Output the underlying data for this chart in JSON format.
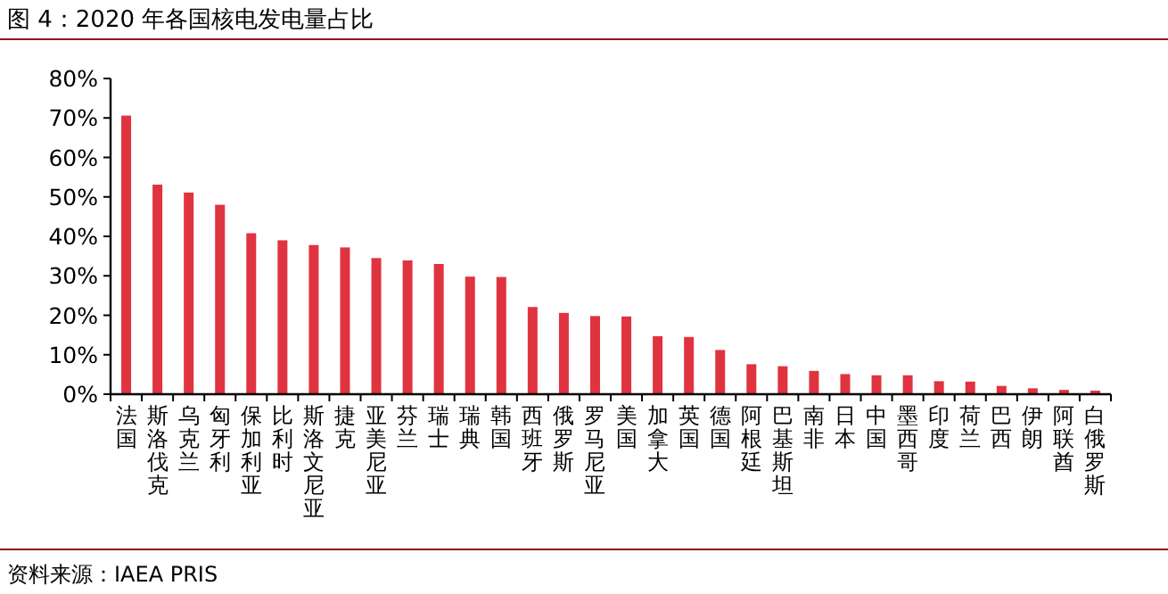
{
  "chart_data": {
    "type": "bar",
    "title": "图 4：2020 年各国核电发电量占比",
    "categories": [
      "法国",
      "斯洛伐克",
      "乌克兰",
      "匈牙利",
      "保加利亚",
      "比利时",
      "斯洛文尼亚",
      "捷克",
      "亚美尼亚",
      "芬兰",
      "瑞士",
      "瑞典",
      "韩国",
      "西班牙",
      "俄罗斯",
      "罗马尼亚",
      "美国",
      "加拿大",
      "英国",
      "德国",
      "阿根廷",
      "巴基斯坦",
      "南非",
      "日本",
      "中国",
      "墨西哥",
      "印度",
      "荷兰",
      "巴西",
      "伊朗",
      "阿联酋",
      "白俄罗斯"
    ],
    "values": [
      70.6,
      53.1,
      51.1,
      48.0,
      40.8,
      39.0,
      37.8,
      37.2,
      34.5,
      33.9,
      33.0,
      29.8,
      29.7,
      22.1,
      20.6,
      19.8,
      19.7,
      14.7,
      14.5,
      11.2,
      7.6,
      7.1,
      5.9,
      5.1,
      4.8,
      4.8,
      3.3,
      3.2,
      2.1,
      1.5,
      1.1,
      0.9
    ],
    "color": "#e03340",
    "ylim": [
      0,
      80
    ],
    "yticks": [
      {
        "value": 0,
        "label": "0%"
      },
      {
        "value": 10,
        "label": "10%"
      },
      {
        "value": 20,
        "label": "20%"
      },
      {
        "value": 30,
        "label": "30%"
      },
      {
        "value": 40,
        "label": "40%"
      },
      {
        "value": 50,
        "label": "50%"
      },
      {
        "value": 60,
        "label": "60%"
      },
      {
        "value": 70,
        "label": "70%"
      },
      {
        "value": 80,
        "label": "80%"
      }
    ],
    "annotations": [
      "资料来源：IAEA PRIS"
    ]
  }
}
